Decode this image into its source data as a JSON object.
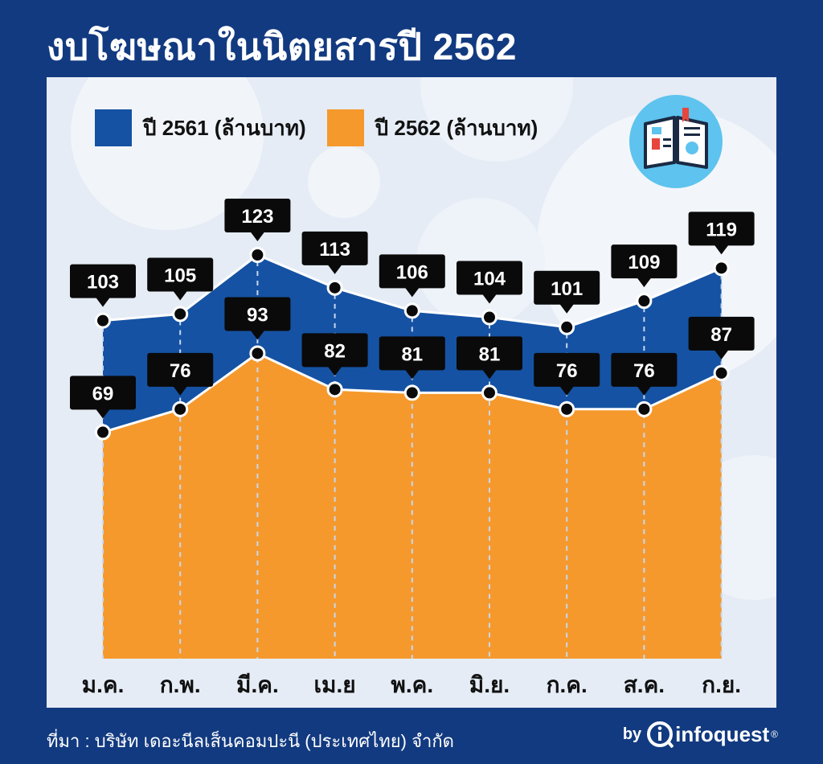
{
  "header": {
    "title": "งบโฆษณาในนิตยสารปี 2562"
  },
  "legend": {
    "items": [
      {
        "label": "ปี 2561 (ล้านบาท)",
        "color": "#1552a3"
      },
      {
        "label": "ปี 2562 (ล้านบาท)",
        "color": "#f5992d"
      }
    ]
  },
  "icon": "open-magazine-icon",
  "footer": {
    "source": "ที่มา : บริษัท เดอะนีลเส็นคอมปะนี (ประเทศไทย) จำกัด",
    "brand_by": "by",
    "brand_name": "infoquest",
    "brand_mark": "®"
  },
  "colors": {
    "background": "#123a80",
    "panel": "#e5ecf5",
    "series_2561": "#1552a3",
    "series_2562": "#f5992d",
    "label_box": "#0a0a0a"
  },
  "chart_data": {
    "type": "area",
    "categories": [
      "ม.ค.",
      "ก.พ.",
      "มี.ค.",
      "เม.ย",
      "พ.ค.",
      "มิ.ย.",
      "ก.ค.",
      "ส.ค.",
      "ก.ย."
    ],
    "series": [
      {
        "name": "ปี 2561 (ล้านบาท)",
        "values": [
          103,
          105,
          123,
          113,
          106,
          104,
          101,
          109,
          119
        ]
      },
      {
        "name": "ปี 2562 (ล้านบาท)",
        "values": [
          69,
          76,
          93,
          82,
          81,
          81,
          76,
          76,
          87
        ]
      }
    ],
    "title": "งบโฆษณาในนิตยสารปี 2562",
    "xlabel": "",
    "ylabel": "",
    "ylim": [
      0,
      130
    ],
    "grid": false,
    "legend_position": "top-left",
    "data_labels": true
  }
}
